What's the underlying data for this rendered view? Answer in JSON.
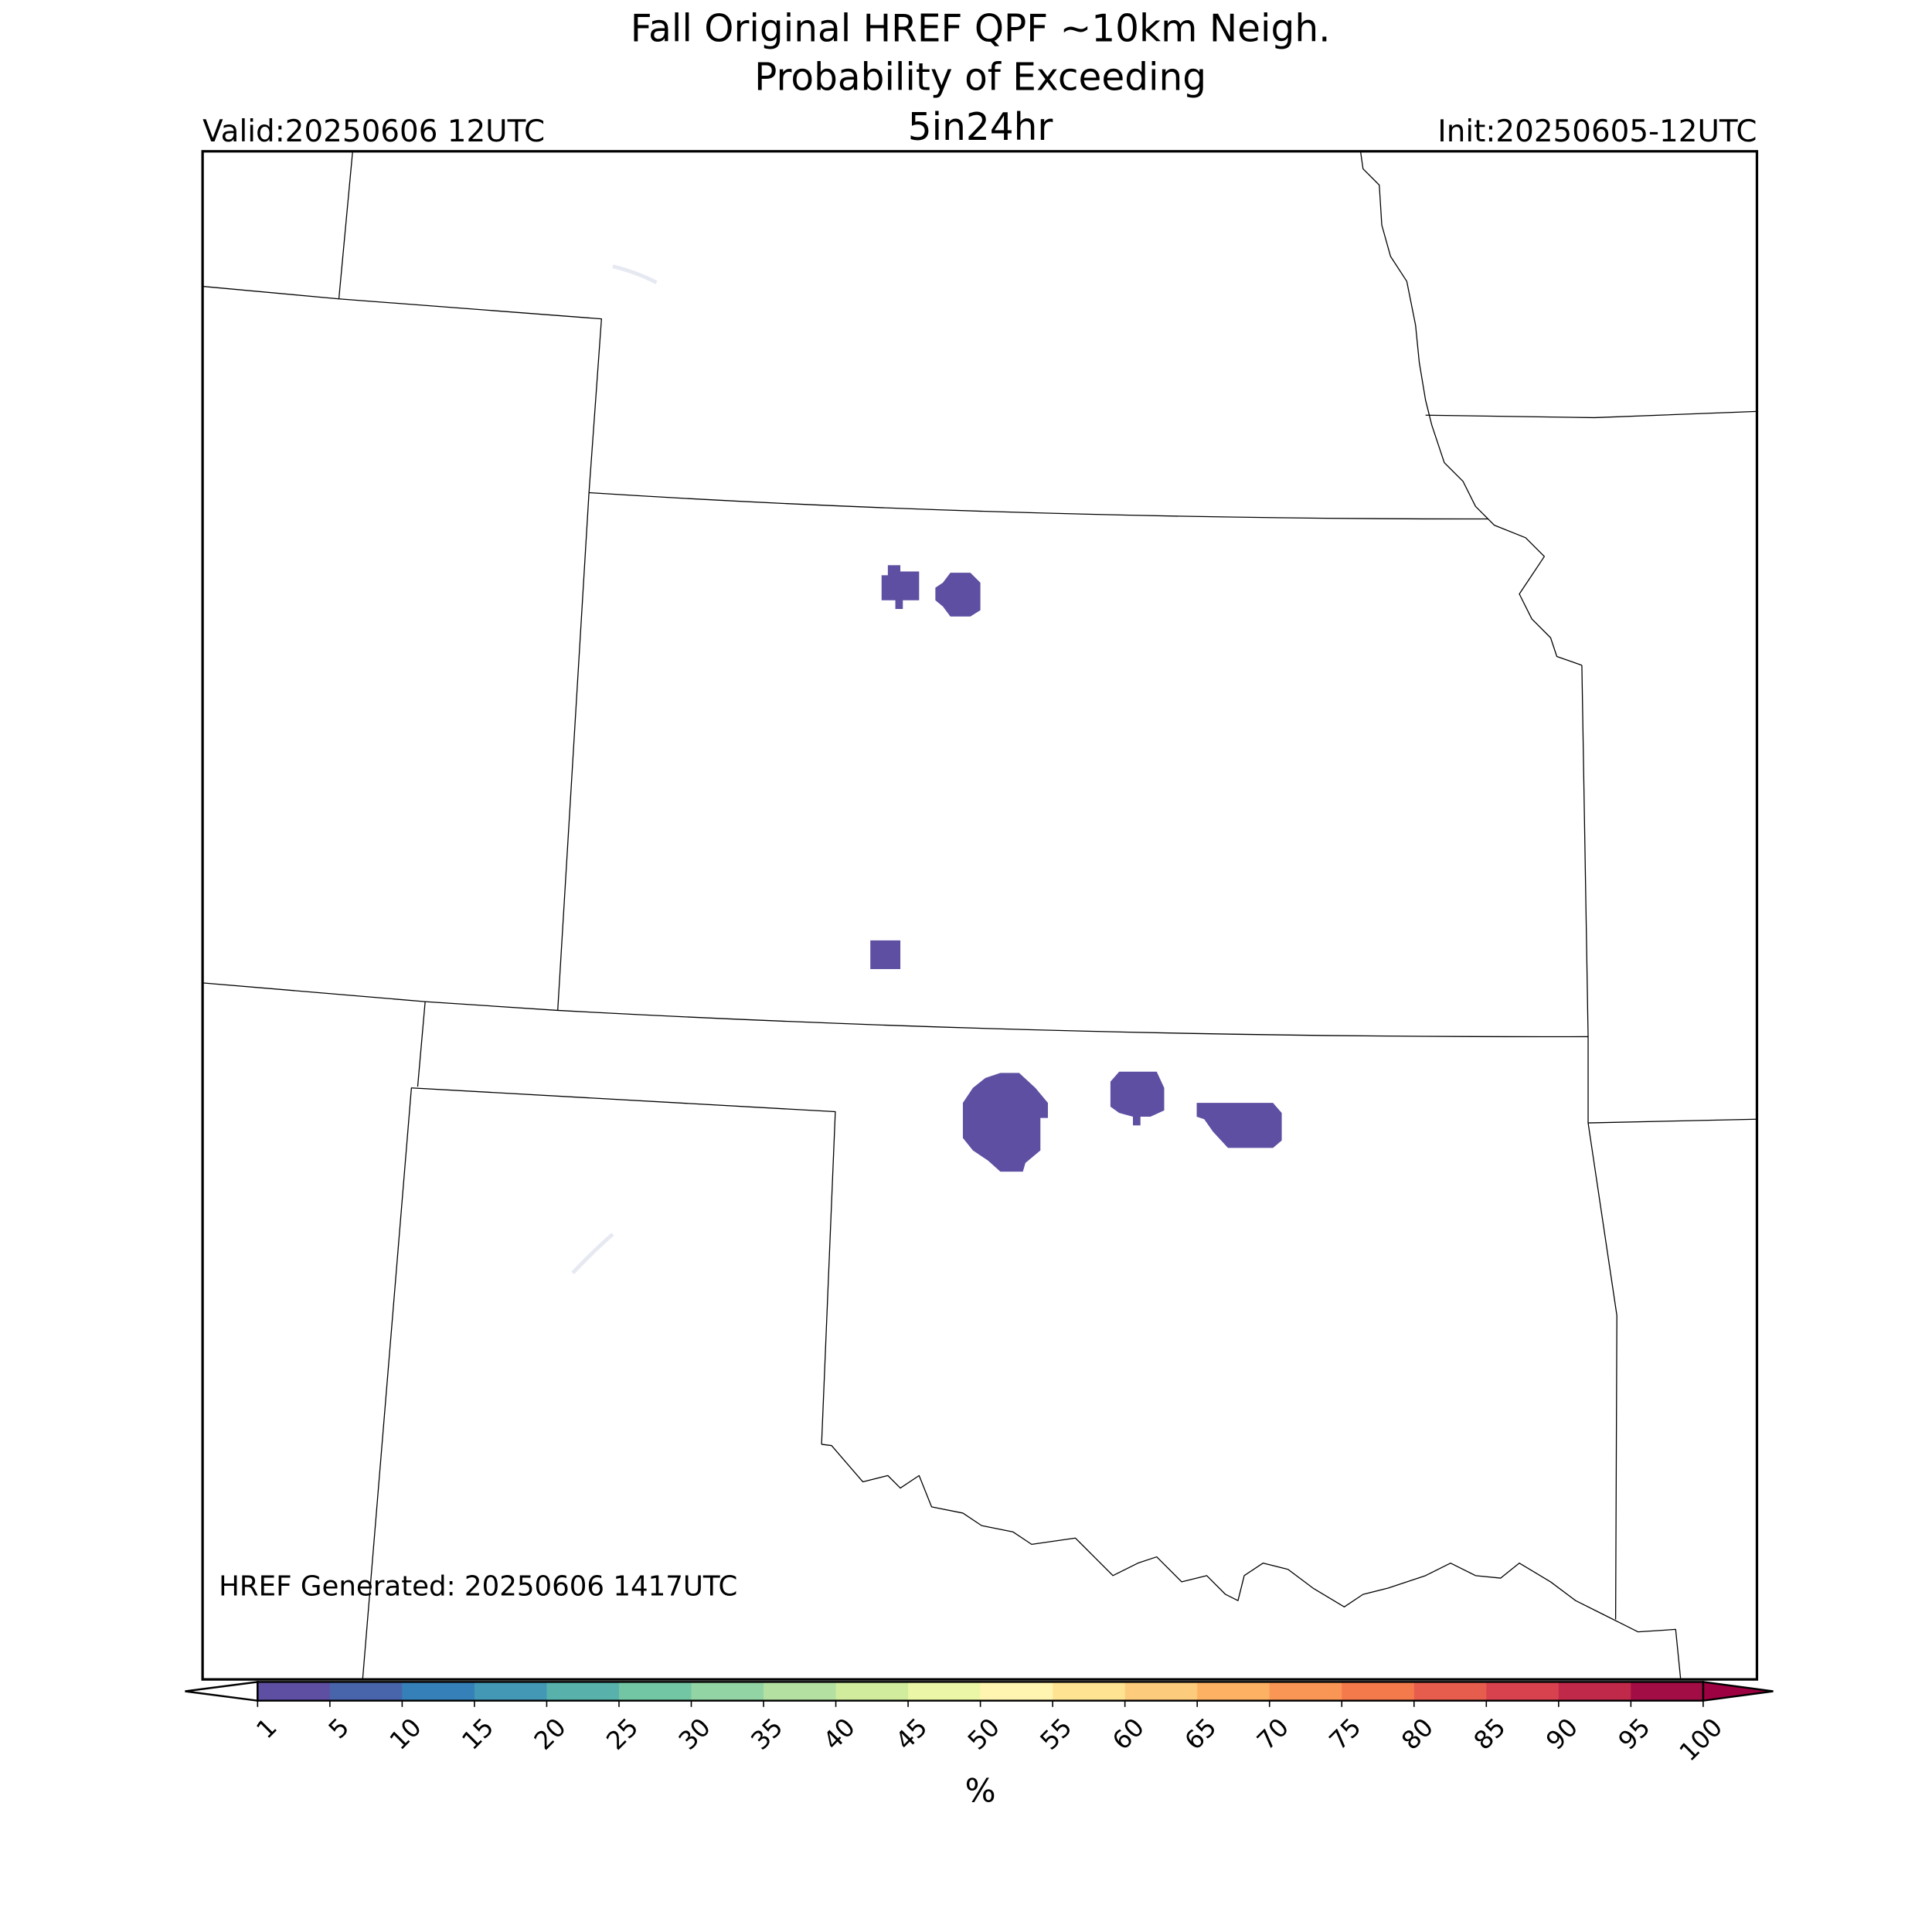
{
  "header": {
    "title_lines": [
      "Fall Original HREF QPF ~10km Neigh.",
      "Probability of Exceeding",
      "5in24hr"
    ],
    "valid": "Valid:20250606 12UTC",
    "init": "Init:20250605-12UTC"
  },
  "map": {
    "footnote": "HREF Generated: 20250606 1417UTC"
  },
  "colorbar": {
    "label": "%",
    "ticks": [
      1,
      5,
      10,
      15,
      20,
      25,
      30,
      35,
      40,
      45,
      50,
      55,
      60,
      65,
      70,
      75,
      80,
      85,
      90,
      95,
      100
    ],
    "colors": [
      "#5e4fa2",
      "#4865ac",
      "#3680b9",
      "#4298b5",
      "#58b2ab",
      "#73c6a4",
      "#92d4a4",
      "#b4e0a2",
      "#d0ec9c",
      "#ebf7a6",
      "#fff5b0",
      "#fee393",
      "#fdcb7c",
      "#fdb163",
      "#fa9655",
      "#f57a4b",
      "#e65d4e",
      "#d7424e",
      "#c0294a",
      "#a10d44"
    ],
    "under_color": "#ffffff",
    "over_color": "#9e0142"
  }
}
